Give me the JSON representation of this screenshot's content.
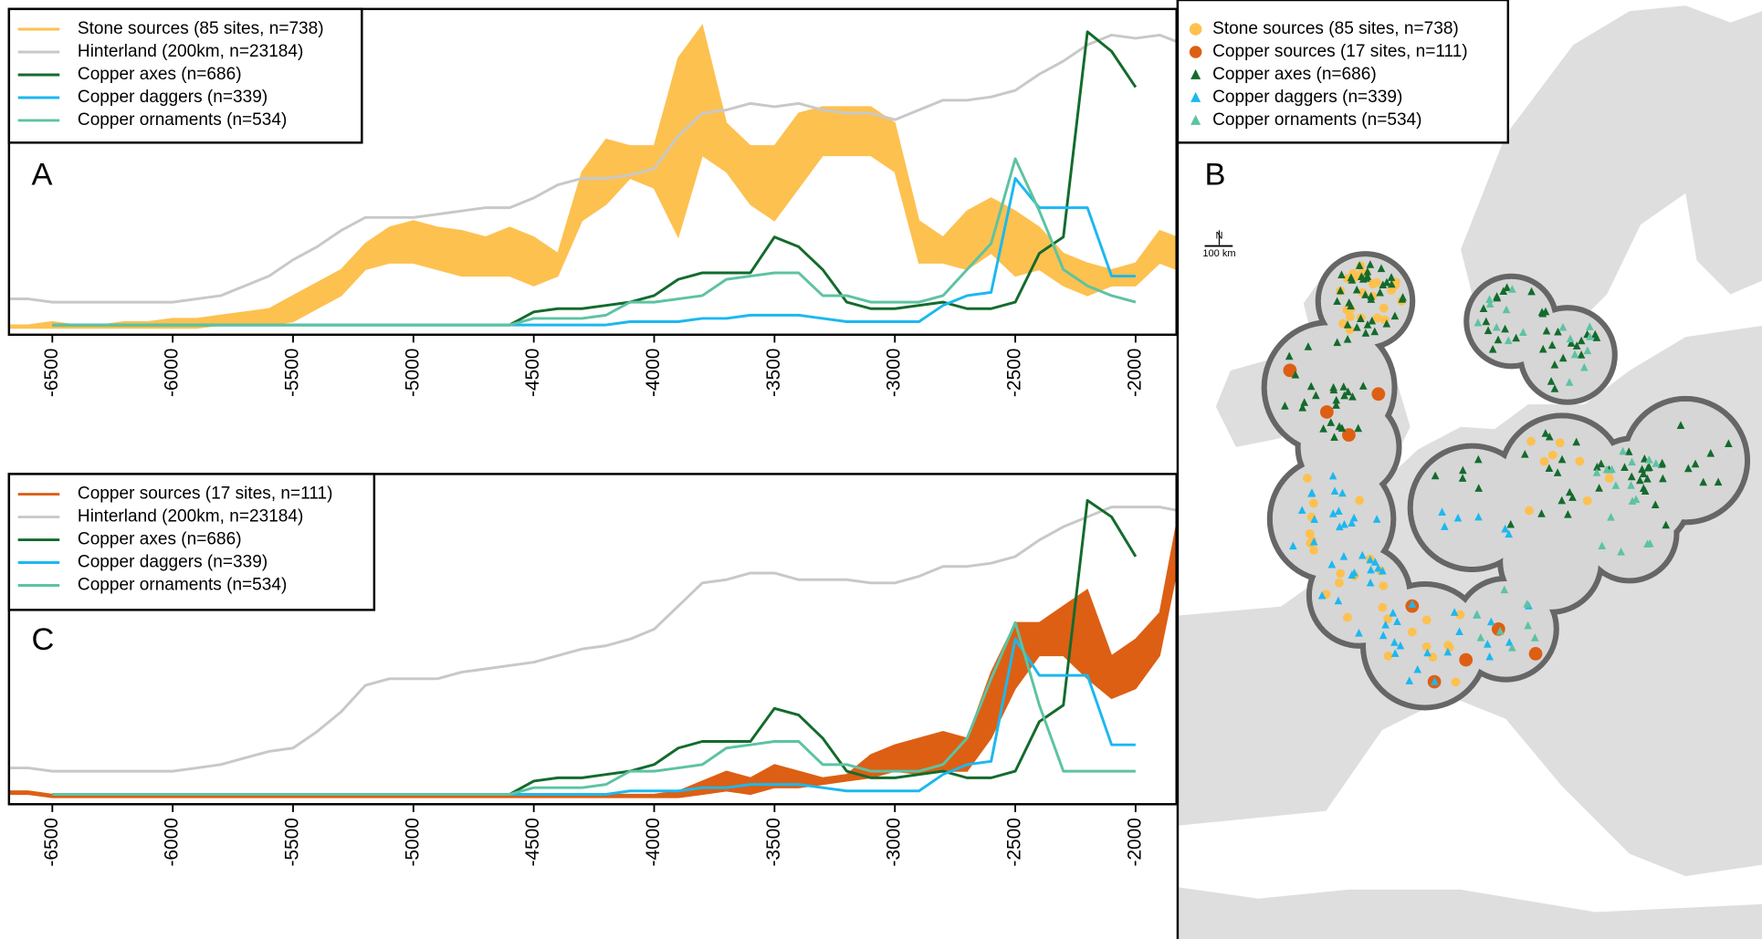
{
  "chart_data": [
    {
      "type": "line",
      "panel_label": "A",
      "x": [
        -6680,
        -6600,
        -6500,
        -6400,
        -6300,
        -6200,
        -6100,
        -6000,
        -5900,
        -5800,
        -5700,
        -5600,
        -5500,
        -5400,
        -5300,
        -5200,
        -5100,
        -5000,
        -4900,
        -4800,
        -4700,
        -4600,
        -4500,
        -4400,
        -4300,
        -4200,
        -4100,
        -4000,
        -3900,
        -3800,
        -3700,
        -3600,
        -3500,
        -3400,
        -3300,
        -3200,
        -3100,
        -3000,
        -2900,
        -2800,
        -2700,
        -2600,
        -2500,
        -2400,
        -2300,
        -2200,
        -2100,
        -2000,
        -1900,
        -1830
      ],
      "xlim": [
        -6680,
        -1830
      ],
      "xticks": [
        -6500,
        -6000,
        -5500,
        -5000,
        -4500,
        -4000,
        -3500,
        -3000,
        -2500,
        -2000
      ],
      "ylim": [
        0,
        1
      ],
      "series": [
        {
          "name": "Stone sources (85 sites, n=738)",
          "color": "#fdc150",
          "style": "band",
          "values": [
            0.03,
            0.03,
            0.04,
            0.03,
            0.03,
            0.04,
            0.04,
            0.05,
            0.05,
            0.06,
            0.07,
            0.08,
            0.12,
            0.16,
            0.2,
            0.28,
            0.33,
            0.35,
            0.33,
            0.32,
            0.3,
            0.33,
            0.3,
            0.25,
            0.5,
            0.6,
            0.58,
            0.58,
            0.85,
            0.95,
            0.65,
            0.58,
            0.58,
            0.68,
            0.7,
            0.7,
            0.7,
            0.65,
            0.35,
            0.3,
            0.38,
            0.42,
            0.38,
            0.33,
            0.25,
            0.22,
            0.2,
            0.22,
            0.32,
            0.3
          ],
          "low": [
            0.02,
            0.02,
            0.02,
            0.02,
            0.02,
            0.02,
            0.02,
            0.02,
            0.02,
            0.03,
            0.03,
            0.03,
            0.04,
            0.08,
            0.12,
            0.2,
            0.22,
            0.22,
            0.2,
            0.18,
            0.18,
            0.18,
            0.15,
            0.18,
            0.35,
            0.4,
            0.48,
            0.45,
            0.3,
            0.55,
            0.5,
            0.4,
            0.35,
            0.45,
            0.55,
            0.55,
            0.55,
            0.5,
            0.22,
            0.22,
            0.2,
            0.25,
            0.18,
            0.2,
            0.15,
            0.12,
            0.15,
            0.15,
            0.22,
            0.2
          ]
        },
        {
          "name": "Hinterland (200km, n=23184)",
          "color": "#c8c8c8",
          "style": "line",
          "values": [
            0.11,
            0.11,
            0.1,
            0.1,
            0.1,
            0.1,
            0.1,
            0.1,
            0.11,
            0.12,
            0.15,
            0.18,
            0.23,
            0.27,
            0.32,
            0.36,
            0.36,
            0.36,
            0.37,
            0.38,
            0.39,
            0.39,
            0.42,
            0.46,
            0.48,
            0.48,
            0.49,
            0.51,
            0.61,
            0.68,
            0.69,
            0.71,
            0.7,
            0.71,
            0.69,
            0.68,
            0.68,
            0.66,
            0.69,
            0.72,
            0.72,
            0.73,
            0.75,
            0.8,
            0.84,
            0.89,
            0.92,
            0.91,
            0.92,
            0.9
          ]
        },
        {
          "name": "Copper axes (n=686)",
          "color": "#136b2c",
          "style": "line",
          "values": [
            null,
            null,
            0.03,
            0.03,
            0.03,
            0.03,
            0.03,
            0.03,
            0.03,
            0.03,
            0.03,
            0.03,
            0.03,
            0.03,
            0.03,
            0.03,
            0.03,
            0.03,
            0.03,
            0.03,
            0.03,
            0.03,
            0.07,
            0.08,
            0.08,
            0.09,
            0.1,
            0.12,
            0.17,
            0.19,
            0.19,
            0.19,
            0.3,
            0.27,
            0.2,
            0.1,
            0.08,
            0.08,
            0.09,
            0.1,
            0.08,
            0.08,
            0.1,
            0.25,
            0.3,
            0.93,
            0.87,
            0.76,
            null,
            null
          ]
        },
        {
          "name": "Copper daggers (n=339)",
          "color": "#1cb8ef",
          "style": "line",
          "values": [
            null,
            null,
            0.03,
            0.03,
            0.03,
            0.03,
            0.03,
            0.03,
            0.03,
            0.03,
            0.03,
            0.03,
            0.03,
            0.03,
            0.03,
            0.03,
            0.03,
            0.03,
            0.03,
            0.03,
            0.03,
            0.03,
            0.03,
            0.03,
            0.03,
            0.03,
            0.04,
            0.04,
            0.04,
            0.05,
            0.05,
            0.06,
            0.06,
            0.06,
            0.05,
            0.04,
            0.04,
            0.04,
            0.04,
            0.09,
            0.12,
            0.13,
            0.48,
            0.39,
            0.39,
            0.39,
            0.18,
            0.18,
            null,
            null
          ]
        },
        {
          "name": "Copper ornaments (n=534)",
          "color": "#5dc3a2",
          "style": "line",
          "values": [
            null,
            null,
            0.03,
            0.03,
            0.03,
            0.03,
            0.03,
            0.03,
            0.03,
            0.03,
            0.03,
            0.03,
            0.03,
            0.03,
            0.03,
            0.03,
            0.03,
            0.03,
            0.03,
            0.03,
            0.03,
            0.03,
            0.05,
            0.05,
            0.05,
            0.06,
            0.1,
            0.1,
            0.11,
            0.12,
            0.17,
            0.18,
            0.19,
            0.19,
            0.12,
            0.12,
            0.1,
            0.1,
            0.1,
            0.12,
            0.2,
            0.28,
            0.54,
            0.38,
            0.2,
            0.15,
            0.12,
            0.1,
            null,
            null
          ]
        }
      ]
    },
    {
      "type": "line",
      "panel_label": "C",
      "x": [
        -6680,
        -6600,
        -6500,
        -6400,
        -6300,
        -6200,
        -6100,
        -6000,
        -5900,
        -5800,
        -5700,
        -5600,
        -5500,
        -5400,
        -5300,
        -5200,
        -5100,
        -5000,
        -4900,
        -4800,
        -4700,
        -4600,
        -4500,
        -4400,
        -4300,
        -4200,
        -4100,
        -4000,
        -3900,
        -3800,
        -3700,
        -3600,
        -3500,
        -3400,
        -3300,
        -3200,
        -3100,
        -3000,
        -2900,
        -2800,
        -2700,
        -2600,
        -2500,
        -2400,
        -2300,
        -2200,
        -2100,
        -2000,
        -1900,
        -1830
      ],
      "xlim": [
        -6680,
        -1830
      ],
      "xticks": [
        -6500,
        -6000,
        -5500,
        -5000,
        -4500,
        -4000,
        -3500,
        -3000,
        -2500,
        -2000
      ],
      "ylim": [
        0,
        1
      ],
      "series": [
        {
          "name": "Copper sources (17 sites, n=111)",
          "color": "#dd5f14",
          "style": "band",
          "values": [
            0.04,
            0.04,
            0.03,
            0.03,
            0.03,
            0.03,
            0.03,
            0.03,
            0.03,
            0.03,
            0.03,
            0.03,
            0.03,
            0.03,
            0.03,
            0.03,
            0.03,
            0.03,
            0.03,
            0.03,
            0.03,
            0.03,
            0.03,
            0.03,
            0.03,
            0.03,
            0.03,
            0.03,
            0.04,
            0.07,
            0.1,
            0.08,
            0.12,
            0.1,
            0.08,
            0.09,
            0.15,
            0.18,
            0.2,
            0.22,
            0.2,
            0.4,
            0.55,
            0.55,
            0.6,
            0.65,
            0.45,
            0.5,
            0.58,
            0.85
          ],
          "low": [
            0.03,
            0.03,
            0.02,
            0.02,
            0.02,
            0.02,
            0.02,
            0.02,
            0.02,
            0.02,
            0.02,
            0.02,
            0.02,
            0.02,
            0.02,
            0.02,
            0.02,
            0.02,
            0.02,
            0.02,
            0.02,
            0.02,
            0.02,
            0.02,
            0.02,
            0.02,
            0.02,
            0.02,
            0.02,
            0.03,
            0.04,
            0.03,
            0.05,
            0.05,
            0.06,
            0.07,
            0.08,
            0.1,
            0.09,
            0.1,
            0.1,
            0.2,
            0.35,
            0.45,
            0.45,
            0.38,
            0.32,
            0.35,
            0.45,
            0.7
          ]
        },
        {
          "name": "Hinterland (200km, n=23184)",
          "color": "#c8c8c8",
          "style": "line",
          "values": [
            0.11,
            0.11,
            0.1,
            0.1,
            0.1,
            0.1,
            0.1,
            0.1,
            0.11,
            0.12,
            0.14,
            0.16,
            0.17,
            0.22,
            0.28,
            0.36,
            0.38,
            0.38,
            0.38,
            0.4,
            0.41,
            0.42,
            0.43,
            0.45,
            0.47,
            0.48,
            0.5,
            0.53,
            0.6,
            0.67,
            0.68,
            0.7,
            0.7,
            0.68,
            0.68,
            0.68,
            0.67,
            0.67,
            0.69,
            0.72,
            0.72,
            0.73,
            0.75,
            0.8,
            0.84,
            0.87,
            0.9,
            0.9,
            0.9,
            0.89
          ]
        },
        {
          "name": "Copper axes (n=686)",
          "color": "#136b2c",
          "style": "line",
          "values": [
            null,
            null,
            0.03,
            0.03,
            0.03,
            0.03,
            0.03,
            0.03,
            0.03,
            0.03,
            0.03,
            0.03,
            0.03,
            0.03,
            0.03,
            0.03,
            0.03,
            0.03,
            0.03,
            0.03,
            0.03,
            0.03,
            0.07,
            0.08,
            0.08,
            0.09,
            0.1,
            0.12,
            0.17,
            0.19,
            0.19,
            0.19,
            0.29,
            0.27,
            0.2,
            0.1,
            0.08,
            0.08,
            0.09,
            0.1,
            0.08,
            0.08,
            0.1,
            0.25,
            0.3,
            0.92,
            0.87,
            0.75,
            null,
            null
          ]
        },
        {
          "name": "Copper daggers (n=339)",
          "color": "#1cb8ef",
          "style": "line",
          "values": [
            null,
            null,
            0.03,
            0.03,
            0.03,
            0.03,
            0.03,
            0.03,
            0.03,
            0.03,
            0.03,
            0.03,
            0.03,
            0.03,
            0.03,
            0.03,
            0.03,
            0.03,
            0.03,
            0.03,
            0.03,
            0.03,
            0.03,
            0.03,
            0.03,
            0.03,
            0.04,
            0.04,
            0.04,
            0.05,
            0.05,
            0.06,
            0.06,
            0.06,
            0.05,
            0.04,
            0.04,
            0.04,
            0.04,
            0.09,
            0.12,
            0.13,
            0.5,
            0.39,
            0.39,
            0.39,
            0.18,
            0.18,
            null,
            null
          ]
        },
        {
          "name": "Copper ornaments (n=534)",
          "color": "#5dc3a2",
          "style": "line",
          "values": [
            null,
            null,
            0.03,
            0.03,
            0.03,
            0.03,
            0.03,
            0.03,
            0.03,
            0.03,
            0.03,
            0.03,
            0.03,
            0.03,
            0.03,
            0.03,
            0.03,
            0.03,
            0.03,
            0.03,
            0.03,
            0.03,
            0.05,
            0.05,
            0.05,
            0.06,
            0.1,
            0.1,
            0.11,
            0.12,
            0.17,
            0.18,
            0.19,
            0.19,
            0.12,
            0.12,
            0.1,
            0.1,
            0.1,
            0.12,
            0.2,
            0.38,
            0.55,
            0.3,
            0.1,
            0.1,
            0.1,
            0.1,
            null,
            null
          ]
        }
      ]
    },
    {
      "type": "map",
      "panel_label": "B",
      "north_label": "N",
      "scale_label": "100 km",
      "series": [
        {
          "name": "Stone sources (85 sites, n=738)",
          "color": "#fdc150",
          "marker": "circle"
        },
        {
          "name": "Copper sources (17 sites, n=111)",
          "color": "#dd5f14",
          "marker": "circle"
        },
        {
          "name": "Copper axes (n=686)",
          "color": "#136b2c",
          "marker": "triangle"
        },
        {
          "name": "Copper daggers (n=339)",
          "color": "#1cb8ef",
          "marker": "triangle"
        },
        {
          "name": "Copper ornaments (n=534)",
          "color": "#5dc3a2",
          "marker": "triangle"
        }
      ]
    }
  ]
}
